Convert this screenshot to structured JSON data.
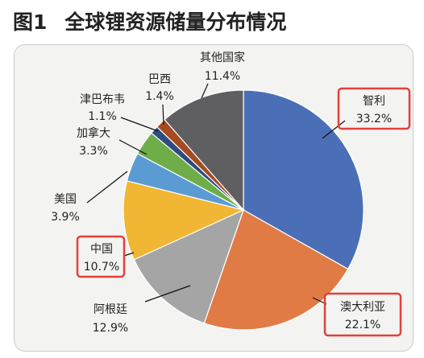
{
  "figure": {
    "number": "图1",
    "title": "全球锂资源储量分布情况"
  },
  "colors": {
    "highlight_box": "#e2403c",
    "panel_bg": "#f3f4f2"
  },
  "chart_data": {
    "type": "pie",
    "unit": "%",
    "slices": [
      {
        "label": "智利",
        "value": 33.2,
        "value_label": "33.2%",
        "color": "#4a6fb6",
        "highlighted": true
      },
      {
        "label": "澳大利亚",
        "value": 22.1,
        "value_label": "22.1%",
        "color": "#e07b46",
        "highlighted": true
      },
      {
        "label": "阿根廷",
        "value": 12.9,
        "value_label": "12.9%",
        "color": "#a5a5a6",
        "highlighted": false
      },
      {
        "label": "中国",
        "value": 10.7,
        "value_label": "10.7%",
        "color": "#f0b634",
        "highlighted": true
      },
      {
        "label": "美国",
        "value": 3.9,
        "value_label": "3.9%",
        "color": "#5b9bd3",
        "highlighted": false
      },
      {
        "label": "加拿大",
        "value": 3.3,
        "value_label": "3.3%",
        "color": "#6fad4a",
        "highlighted": false
      },
      {
        "label": "津巴布韦",
        "value": 1.1,
        "value_label": "1.1%",
        "color": "#2f4b80",
        "highlighted": false
      },
      {
        "label": "巴西",
        "value": 1.4,
        "value_label": "1.4%",
        "color": "#a44b1f",
        "highlighted": false
      },
      {
        "label": "其他国家",
        "value": 11.4,
        "value_label": "11.4%",
        "color": "#5f5f61",
        "highlighted": false
      }
    ]
  }
}
